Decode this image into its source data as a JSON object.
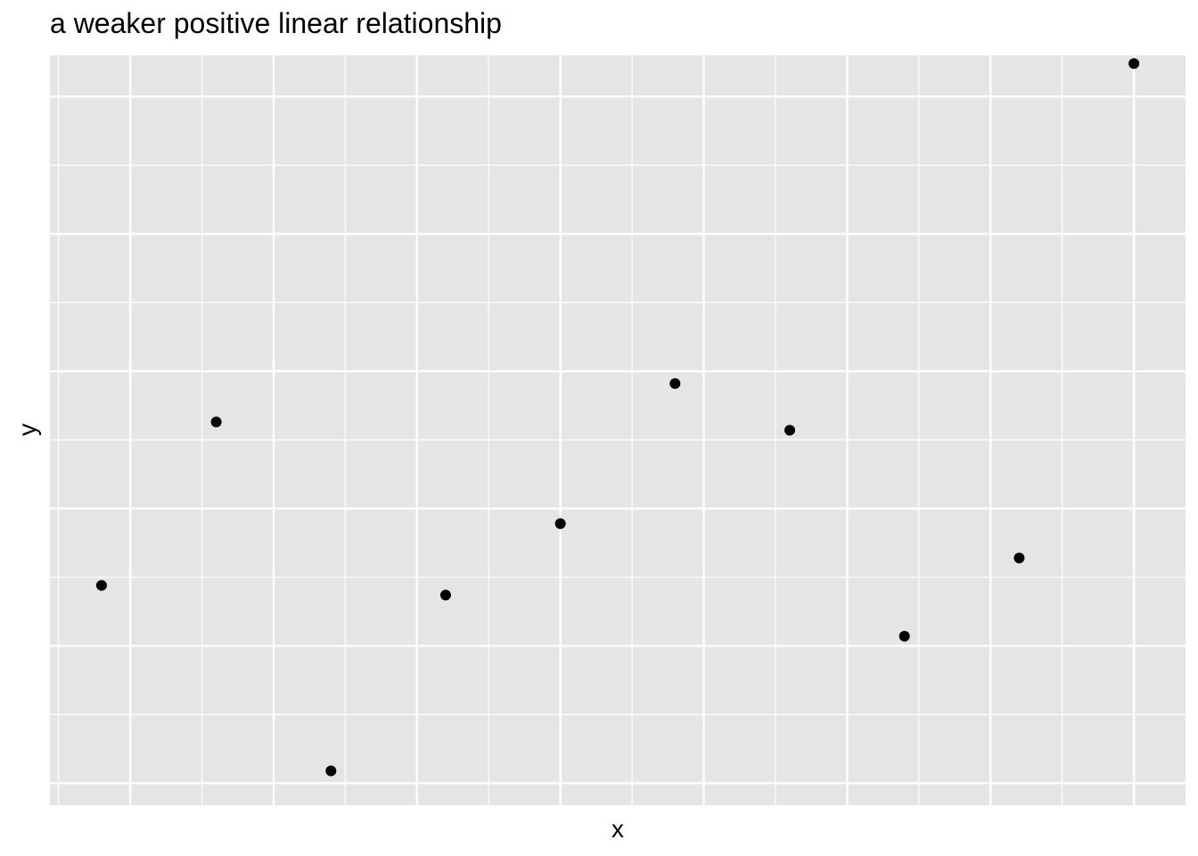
{
  "chart_data": {
    "type": "scatter",
    "title": "a weaker positive linear relationship",
    "xlabel": "x",
    "ylabel": "y",
    "xlim": [
      0.55,
      10.45
    ],
    "ylim": [
      0.84,
      6.3
    ],
    "x_breaks_major": [
      1.25,
      2.5,
      3.75,
      5,
      6.25,
      7.5,
      8.75,
      10
    ],
    "y_breaks_major": [
      1,
      2,
      3,
      4,
      5,
      6
    ],
    "grid": true,
    "points": [
      {
        "x": 1,
        "y": 2.44
      },
      {
        "x": 2,
        "y": 3.63
      },
      {
        "x": 3,
        "y": 1.09
      },
      {
        "x": 4,
        "y": 2.37
      },
      {
        "x": 5,
        "y": 2.89
      },
      {
        "x": 6,
        "y": 3.91
      },
      {
        "x": 7,
        "y": 3.57
      },
      {
        "x": 8,
        "y": 2.07
      },
      {
        "x": 9,
        "y": 2.64
      },
      {
        "x": 10,
        "y": 6.24
      }
    ],
    "colors": {
      "panel": "#e5e5e5",
      "grid": "#ffffff",
      "point": "#000000"
    }
  }
}
